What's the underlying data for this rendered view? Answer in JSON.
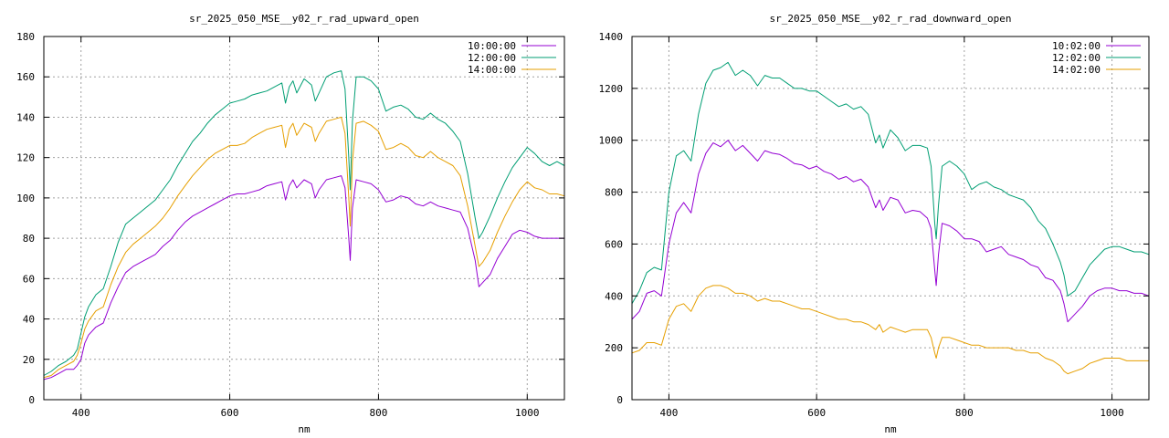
{
  "chart_data": [
    {
      "type": "line",
      "title": "sr_2025_050_MSE__y02_r_rad_upward_open",
      "xlabel": "nm",
      "ylabel": "",
      "xlim": [
        350,
        1050
      ],
      "ylim": [
        0,
        180
      ],
      "xticks": [
        400,
        600,
        800,
        1000
      ],
      "yticks": [
        0,
        20,
        40,
        60,
        80,
        100,
        120,
        140,
        160,
        180
      ],
      "grid": true,
      "legend_position": "top-right",
      "series": [
        {
          "name": "10:00:00",
          "color": "#9400d3",
          "x": [
            350,
            360,
            370,
            380,
            390,
            395,
            400,
            405,
            410,
            420,
            430,
            440,
            450,
            460,
            470,
            480,
            490,
            500,
            510,
            520,
            530,
            540,
            550,
            560,
            570,
            580,
            590,
            600,
            610,
            620,
            630,
            640,
            650,
            660,
            670,
            675,
            680,
            685,
            690,
            700,
            710,
            715,
            720,
            730,
            740,
            750,
            755,
            760,
            762,
            765,
            770,
            780,
            790,
            800,
            810,
            820,
            830,
            840,
            850,
            860,
            870,
            880,
            890,
            900,
            910,
            920,
            930,
            935,
            940,
            950,
            960,
            970,
            980,
            990,
            1000,
            1010,
            1020,
            1030,
            1040,
            1050
          ],
          "y": [
            10,
            11,
            13,
            15,
            15,
            17,
            20,
            28,
            32,
            36,
            38,
            48,
            56,
            63,
            66,
            68,
            70,
            72,
            76,
            79,
            84,
            88,
            91,
            93,
            95,
            97,
            99,
            101,
            102,
            102,
            103,
            104,
            106,
            107,
            108,
            99,
            106,
            109,
            105,
            109,
            107,
            100,
            104,
            109,
            110,
            111,
            105,
            80,
            69,
            95,
            109,
            108,
            107,
            104,
            98,
            99,
            101,
            100,
            97,
            96,
            98,
            96,
            95,
            94,
            93,
            85,
            69,
            56,
            58,
            62,
            70,
            76,
            82,
            84,
            83,
            81,
            80,
            80,
            80,
            80
          ]
        },
        {
          "name": "12:00:00",
          "color": "#009e73",
          "x": [
            350,
            360,
            370,
            380,
            390,
            395,
            400,
            405,
            410,
            420,
            430,
            440,
            450,
            460,
            470,
            480,
            490,
            500,
            510,
            520,
            530,
            540,
            550,
            560,
            570,
            580,
            590,
            600,
            610,
            620,
            630,
            640,
            650,
            660,
            670,
            675,
            680,
            685,
            690,
            700,
            710,
            715,
            720,
            730,
            740,
            750,
            755,
            760,
            762,
            765,
            770,
            780,
            790,
            800,
            810,
            820,
            830,
            840,
            850,
            860,
            870,
            880,
            890,
            900,
            910,
            920,
            930,
            935,
            940,
            950,
            960,
            970,
            980,
            990,
            1000,
            1010,
            1020,
            1030,
            1040,
            1050
          ],
          "y": [
            12,
            14,
            17,
            19,
            22,
            25,
            33,
            41,
            46,
            52,
            55,
            66,
            78,
            87,
            90,
            93,
            96,
            99,
            104,
            109,
            116,
            122,
            128,
            132,
            137,
            141,
            144,
            147,
            148,
            149,
            151,
            152,
            153,
            155,
            157,
            147,
            155,
            158,
            152,
            159,
            156,
            148,
            152,
            160,
            162,
            163,
            154,
            120,
            104,
            138,
            160,
            160,
            158,
            154,
            143,
            145,
            146,
            144,
            140,
            139,
            142,
            139,
            137,
            133,
            128,
            112,
            90,
            80,
            83,
            91,
            100,
            108,
            115,
            120,
            125,
            122,
            118,
            116,
            118,
            116
          ]
        },
        {
          "name": "14:00:00",
          "color": "#e69f00",
          "x": [
            350,
            360,
            370,
            380,
            390,
            395,
            400,
            405,
            410,
            420,
            430,
            440,
            450,
            460,
            470,
            480,
            490,
            500,
            510,
            520,
            530,
            540,
            550,
            560,
            570,
            580,
            590,
            600,
            610,
            620,
            630,
            640,
            650,
            660,
            670,
            675,
            680,
            685,
            690,
            700,
            710,
            715,
            720,
            730,
            740,
            750,
            755,
            760,
            762,
            765,
            770,
            780,
            790,
            800,
            810,
            820,
            830,
            840,
            850,
            860,
            870,
            880,
            890,
            900,
            910,
            920,
            930,
            935,
            940,
            950,
            960,
            970,
            980,
            990,
            1000,
            1010,
            1020,
            1030,
            1040,
            1050
          ],
          "y": [
            11,
            12,
            15,
            17,
            19,
            22,
            28,
            35,
            39,
            44,
            46,
            57,
            66,
            73,
            77,
            80,
            83,
            86,
            90,
            95,
            101,
            106,
            111,
            115,
            119,
            122,
            124,
            126,
            126,
            127,
            130,
            132,
            134,
            135,
            136,
            125,
            134,
            137,
            131,
            137,
            135,
            128,
            132,
            138,
            139,
            140,
            132,
            100,
            86,
            118,
            137,
            138,
            136,
            133,
            124,
            125,
            127,
            125,
            121,
            120,
            123,
            120,
            118,
            116,
            111,
            96,
            76,
            66,
            68,
            74,
            83,
            91,
            98,
            104,
            108,
            105,
            104,
            102,
            102,
            101
          ]
        }
      ]
    },
    {
      "type": "line",
      "title": "sr_2025_050_MSE__y02_r_rad_downward_open",
      "xlabel": "nm",
      "ylabel": "",
      "xlim": [
        350,
        1050
      ],
      "ylim": [
        0,
        1400
      ],
      "xticks": [
        400,
        600,
        800,
        1000
      ],
      "yticks": [
        0,
        200,
        400,
        600,
        800,
        1000,
        1200,
        1400
      ],
      "grid": true,
      "legend_position": "top-right",
      "series": [
        {
          "name": "10:02:00",
          "color": "#9400d3",
          "x": [
            350,
            360,
            370,
            380,
            390,
            400,
            410,
            420,
            430,
            440,
            450,
            460,
            470,
            480,
            490,
            500,
            510,
            520,
            530,
            540,
            550,
            560,
            570,
            580,
            590,
            600,
            610,
            620,
            630,
            640,
            650,
            660,
            670,
            680,
            685,
            690,
            700,
            710,
            720,
            730,
            740,
            750,
            755,
            760,
            762,
            765,
            770,
            780,
            790,
            800,
            810,
            820,
            830,
            840,
            850,
            860,
            870,
            880,
            890,
            900,
            910,
            920,
            930,
            935,
            940,
            950,
            960,
            970,
            980,
            990,
            1000,
            1010,
            1020,
            1030,
            1040,
            1050
          ],
          "y": [
            310,
            340,
            410,
            420,
            400,
            600,
            720,
            760,
            720,
            870,
            950,
            990,
            975,
            1000,
            960,
            980,
            950,
            920,
            960,
            950,
            945,
            930,
            910,
            905,
            890,
            900,
            880,
            870,
            850,
            860,
            840,
            850,
            820,
            740,
            770,
            730,
            780,
            770,
            720,
            730,
            725,
            700,
            660,
            500,
            440,
            560,
            680,
            670,
            650,
            620,
            620,
            610,
            570,
            580,
            590,
            560,
            550,
            540,
            520,
            510,
            470,
            460,
            420,
            370,
            300,
            330,
            360,
            400,
            420,
            430,
            430,
            420,
            420,
            410,
            410,
            400
          ]
        },
        {
          "name": "12:02:00",
          "color": "#009e73",
          "x": [
            350,
            360,
            370,
            380,
            390,
            400,
            410,
            420,
            430,
            440,
            450,
            460,
            470,
            480,
            490,
            500,
            510,
            520,
            530,
            540,
            550,
            560,
            570,
            580,
            590,
            600,
            610,
            620,
            630,
            640,
            650,
            660,
            670,
            680,
            685,
            690,
            700,
            710,
            720,
            730,
            740,
            750,
            755,
            760,
            762,
            765,
            770,
            780,
            790,
            800,
            810,
            820,
            830,
            840,
            850,
            860,
            870,
            880,
            890,
            900,
            910,
            920,
            930,
            935,
            940,
            950,
            960,
            970,
            980,
            990,
            1000,
            1010,
            1020,
            1030,
            1040,
            1050
          ],
          "y": [
            370,
            420,
            490,
            510,
            500,
            800,
            940,
            960,
            920,
            1100,
            1220,
            1270,
            1280,
            1300,
            1250,
            1270,
            1250,
            1210,
            1250,
            1240,
            1240,
            1220,
            1200,
            1200,
            1190,
            1190,
            1170,
            1150,
            1130,
            1140,
            1120,
            1130,
            1100,
            990,
            1020,
            970,
            1040,
            1010,
            960,
            980,
            980,
            970,
            900,
            680,
            620,
            750,
            900,
            920,
            900,
            870,
            810,
            830,
            840,
            820,
            810,
            790,
            780,
            770,
            740,
            690,
            660,
            600,
            530,
            480,
            400,
            420,
            470,
            520,
            550,
            580,
            590,
            590,
            580,
            570,
            570,
            560
          ]
        },
        {
          "name": "14:02:00",
          "color": "#e69f00",
          "x": [
            350,
            360,
            370,
            380,
            390,
            400,
            410,
            420,
            430,
            440,
            450,
            460,
            470,
            480,
            490,
            500,
            510,
            520,
            530,
            540,
            550,
            560,
            570,
            580,
            590,
            600,
            610,
            620,
            630,
            640,
            650,
            660,
            670,
            680,
            685,
            690,
            700,
            710,
            720,
            730,
            740,
            750,
            755,
            760,
            762,
            765,
            770,
            780,
            790,
            800,
            810,
            820,
            830,
            840,
            850,
            860,
            870,
            880,
            890,
            900,
            910,
            920,
            930,
            935,
            940,
            950,
            960,
            970,
            980,
            990,
            1000,
            1010,
            1020,
            1030,
            1040,
            1050
          ],
          "y": [
            180,
            190,
            220,
            220,
            210,
            310,
            360,
            370,
            340,
            400,
            430,
            440,
            440,
            430,
            410,
            410,
            400,
            380,
            390,
            380,
            380,
            370,
            360,
            350,
            350,
            340,
            330,
            320,
            310,
            310,
            300,
            300,
            290,
            270,
            290,
            260,
            280,
            270,
            260,
            270,
            270,
            270,
            240,
            180,
            160,
            200,
            240,
            240,
            230,
            220,
            210,
            210,
            200,
            200,
            200,
            200,
            190,
            190,
            180,
            180,
            160,
            150,
            130,
            110,
            100,
            110,
            120,
            140,
            150,
            160,
            160,
            160,
            150,
            150,
            150,
            150
          ]
        }
      ]
    }
  ]
}
